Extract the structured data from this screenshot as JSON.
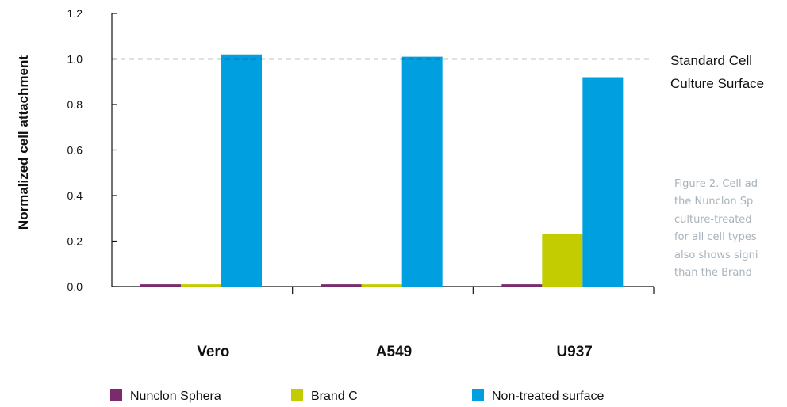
{
  "chart_data": {
    "type": "bar",
    "ylabel": "Normalized cell attachment",
    "ylim": [
      0,
      1.2
    ],
    "yticks": [
      "0.0",
      "0.2",
      "0.4",
      "0.6",
      "0.8",
      "1.0",
      "1.2"
    ],
    "categories": [
      "Vero",
      "A549",
      "U937"
    ],
    "series": [
      {
        "name": "Nunclon Sphera",
        "color": "#7b2a6e",
        "values": [
          0.01,
          0.01,
          0.01
        ]
      },
      {
        "name": "Brand C",
        "color": "#c3cc00",
        "values": [
          0.01,
          0.01,
          0.23
        ]
      },
      {
        "name": "Non-treated surface",
        "color": "#009fe0",
        "values": [
          1.02,
          1.01,
          0.92
        ]
      }
    ],
    "reference_line": {
      "value": 1.0,
      "style": "dashed",
      "label_line1": "Standard Cell",
      "label_line2": "Culture Surface"
    },
    "grid": false,
    "legend_position": "bottom"
  },
  "caption_lines": [
    "Figure 2. Cell ad",
    "the Nunclon Sp",
    "culture-treated",
    "for all cell types",
    "also shows signi",
    "than the Brand"
  ]
}
